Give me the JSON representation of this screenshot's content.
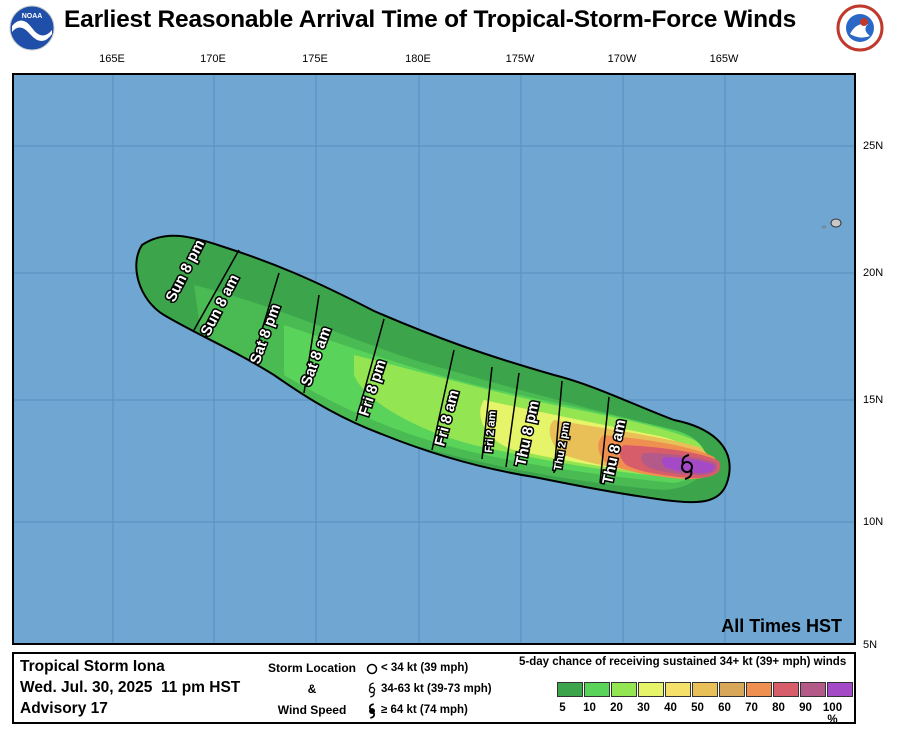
{
  "title": "Earliest Reasonable Arrival Time of Tropical-Storm-Force Winds",
  "logos": {
    "left": "NOAA",
    "right": "NATIONAL WEATHER SERVICE"
  },
  "longitude_labels": [
    "165E",
    "170E",
    "175E",
    "180E",
    "175W",
    "170W",
    "165W"
  ],
  "latitude_labels": [
    "25N",
    "20N",
    "15N",
    "10N",
    "5N"
  ],
  "time_labels": [
    "Sun 8 pm",
    "Sun 8 am",
    "Sat 8 pm",
    "Sat 8 am",
    "Fri 8 pm",
    "Fri 8 am",
    "Fri 2 am",
    "Thu 8 pm",
    "Thu 2 pm",
    "Thu 8 am"
  ],
  "time_zone_note": "All Times HST",
  "storm": {
    "name": "Tropical Storm Iona",
    "datetime": "Wed. Jul. 30, 2025  11 pm HST",
    "advisory": "Advisory 17"
  },
  "legend": {
    "key_title_1": "Storm Location",
    "key_title_2": "&",
    "key_title_3": "Wind Speed",
    "sym_1": "< 34 kt (39 mph)",
    "sym_2": "34-63 kt (39-73 mph)",
    "sym_3": "≥ 64 kt (74 mph)",
    "prob_title": "5-day chance of receiving sustained 34+ kt (39+ mph) winds",
    "prob_ticks": [
      "5",
      "10",
      "20",
      "30",
      "40",
      "50",
      "60",
      "70",
      "80",
      "90",
      "100 %"
    ],
    "prob_colors": [
      "#3ca44b",
      "#5ad35a",
      "#94e552",
      "#e6f46a",
      "#f5e06a",
      "#e8c057",
      "#d9a75a",
      "#f09050",
      "#d85d6a",
      "#b45a88",
      "#a54ac6"
    ]
  },
  "colors": {
    "ocean": "#6fa6d2",
    "land": "#c8c8c8"
  }
}
